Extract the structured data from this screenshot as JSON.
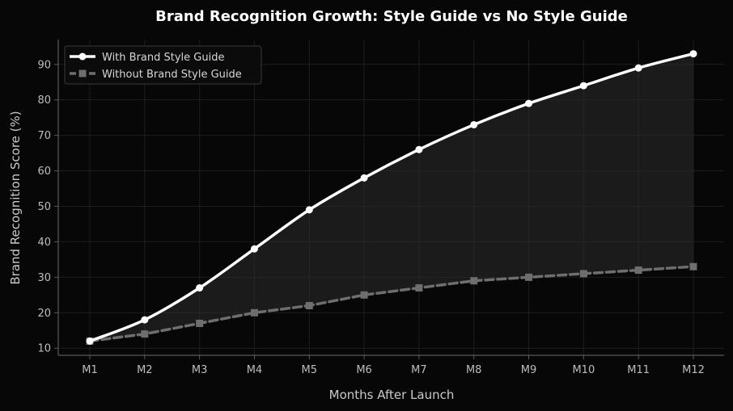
{
  "chart_data": {
    "type": "line",
    "title": "Brand Recognition Growth: Style Guide vs No Style Guide",
    "xlabel": "Months After Launch",
    "ylabel": "Brand Recognition Score (%)",
    "categories": [
      "M1",
      "M2",
      "M3",
      "M4",
      "M5",
      "M6",
      "M7",
      "M8",
      "M9",
      "M10",
      "M11",
      "M12"
    ],
    "ylim": [
      8,
      97
    ],
    "yticks": [
      10,
      20,
      30,
      40,
      50,
      60,
      70,
      80,
      90
    ],
    "grid": true,
    "legend_position": "top-left",
    "series": [
      {
        "name": "With Brand Style Guide",
        "values": [
          12,
          18,
          27,
          38,
          49,
          58,
          66,
          73,
          79,
          84,
          89,
          93
        ],
        "color": "#ffffff",
        "marker": "circle",
        "line_style": "solid"
      },
      {
        "name": "Without Brand Style Guide",
        "values": [
          12,
          14,
          17,
          20,
          22,
          25,
          27,
          29,
          30,
          31,
          32,
          33
        ],
        "color": "#6e6e6e",
        "marker": "square",
        "line_style": "dashed"
      }
    ],
    "fill_between": true,
    "colors": {
      "background": "#070707",
      "grid": "#1e1e1e",
      "axis": "#5a5a5a",
      "fill": "#2a2a2a"
    }
  }
}
